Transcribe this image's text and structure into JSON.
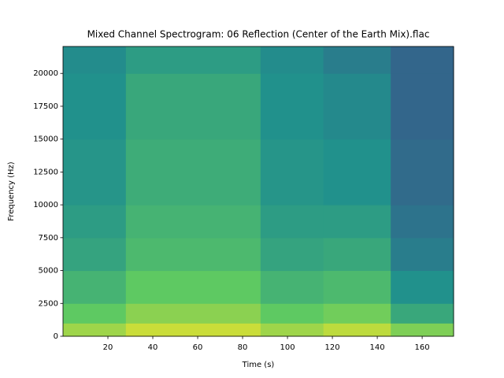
{
  "chart_data": {
    "type": "spectrogram",
    "title": "Mixed Channel Spectrogram: 06 Reflection (Center of the Earth Mix).flac",
    "x_label": "Time (s)",
    "y_label": "Frequency (Hz)",
    "x": [
      0,
      28,
      88,
      116,
      146,
      174
    ],
    "y": [
      0,
      1000,
      2500,
      5000,
      7500,
      10000,
      15000,
      20000,
      22050
    ],
    "values": [
      [
        0.85,
        0.75,
        0.65,
        0.58,
        0.55,
        0.52,
        0.5,
        0.48
      ],
      [
        0.92,
        0.82,
        0.75,
        0.68,
        0.65,
        0.62,
        0.6,
        0.55
      ],
      [
        0.85,
        0.75,
        0.65,
        0.58,
        0.55,
        0.52,
        0.5,
        0.48
      ],
      [
        0.9,
        0.78,
        0.68,
        0.6,
        0.55,
        0.5,
        0.47,
        0.42
      ],
      [
        0.8,
        0.6,
        0.5,
        0.42,
        0.38,
        0.35,
        0.33,
        0.33
      ]
    ],
    "colormap": "viridis",
    "xlim": [
      0,
      174
    ],
    "ylim": [
      0,
      22050
    ],
    "xticks": [
      20,
      40,
      60,
      80,
      100,
      120,
      140,
      160
    ],
    "yticks": [
      0,
      2500,
      5000,
      7500,
      10000,
      12500,
      15000,
      17500,
      20000
    ]
  }
}
